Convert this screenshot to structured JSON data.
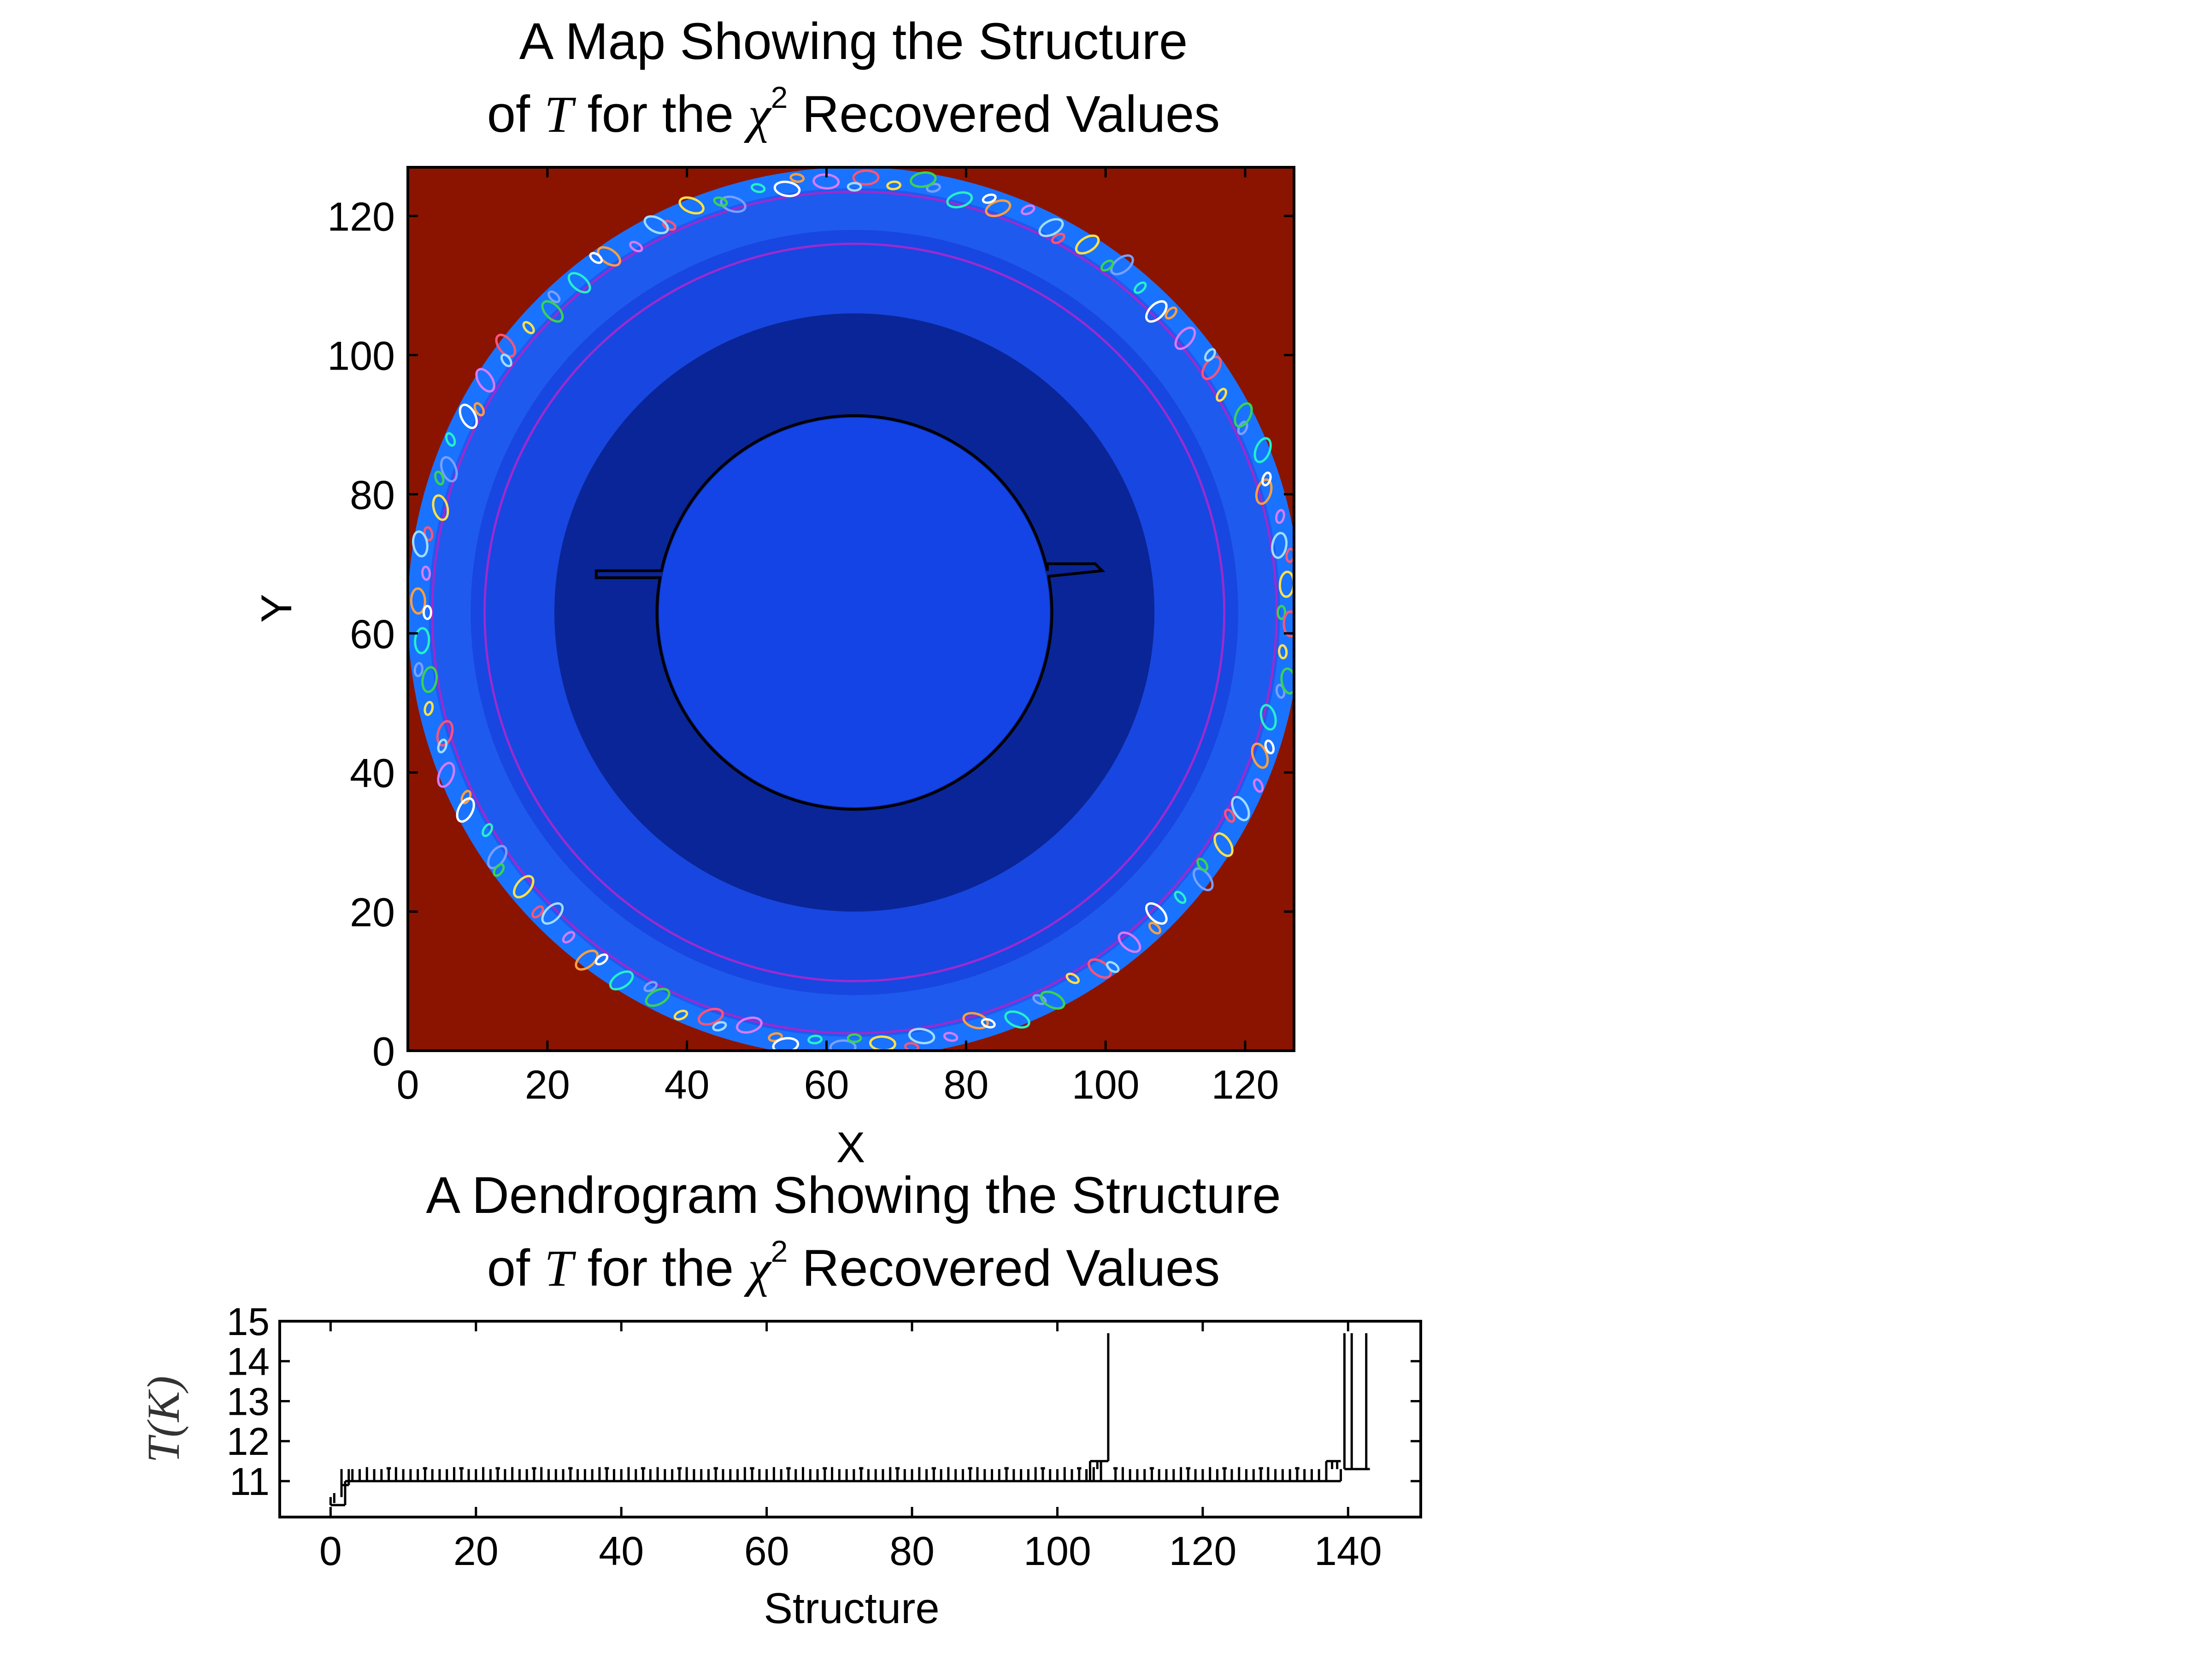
{
  "chart_data": [
    {
      "type": "heatmap",
      "title_line1": "A Map Showing the Structure",
      "title_pre": "of ",
      "title_var": "T",
      "title_mid": " for the ",
      "title_chi": "χ",
      "title_sup": "2",
      "title_post": " Recovered Values",
      "xlabel": "X",
      "ylabel": "Y",
      "xlim": [
        0,
        127
      ],
      "ylim": [
        0,
        127
      ],
      "xticks": [
        0,
        20,
        40,
        60,
        80,
        100,
        120
      ],
      "yticks": [
        0,
        20,
        40,
        60,
        80,
        100,
        120
      ],
      "center": [
        64,
        63
      ],
      "rings": [
        {
          "label": "outer edge",
          "radius": 64,
          "color": "#1a73ff"
        },
        {
          "label": "outer band",
          "radius": 61,
          "color": "#1e5aee"
        },
        {
          "label": "middle band",
          "radius": 55,
          "color": "#1846e0"
        },
        {
          "label": "inner dark band",
          "radius": 43,
          "color": "#0a2597"
        },
        {
          "label": "core",
          "radius": 28,
          "color": "#1544e6"
        }
      ],
      "background_color": "#8b1400",
      "contour_color": "#9a2bd0"
    },
    {
      "type": "dendrogram",
      "title_line1": "A Dendrogram Showing the Structure",
      "title_pre": "of ",
      "title_var": "T",
      "title_mid": " for the ",
      "title_chi": "χ",
      "title_sup": "2",
      "title_post": " Recovered Values",
      "xlabel": "Structure",
      "ylabel": "T(K)",
      "xlim": [
        -7,
        150
      ],
      "ylim": [
        10.1,
        15
      ],
      "xticks": [
        0,
        20,
        40,
        60,
        80,
        100,
        120,
        140
      ],
      "yticks": [
        11,
        12,
        13,
        14,
        15
      ],
      "trunk_level": 11.0,
      "trunk_range": [
        2,
        139
      ],
      "root": {
        "x": [
          0,
          2
        ],
        "level": 10.4
      },
      "leaf_count": 144,
      "leaf_top": 11.3,
      "tall_leaves": [
        {
          "x": 107,
          "top": 14.7,
          "base": 11.5
        },
        {
          "x": 139.5,
          "top": 14.7,
          "base": 11.3
        },
        {
          "x": 140.5,
          "top": 14.7,
          "base": 11.3
        },
        {
          "x": 142.5,
          "top": 14.7,
          "base": 11.3
        }
      ]
    }
  ]
}
